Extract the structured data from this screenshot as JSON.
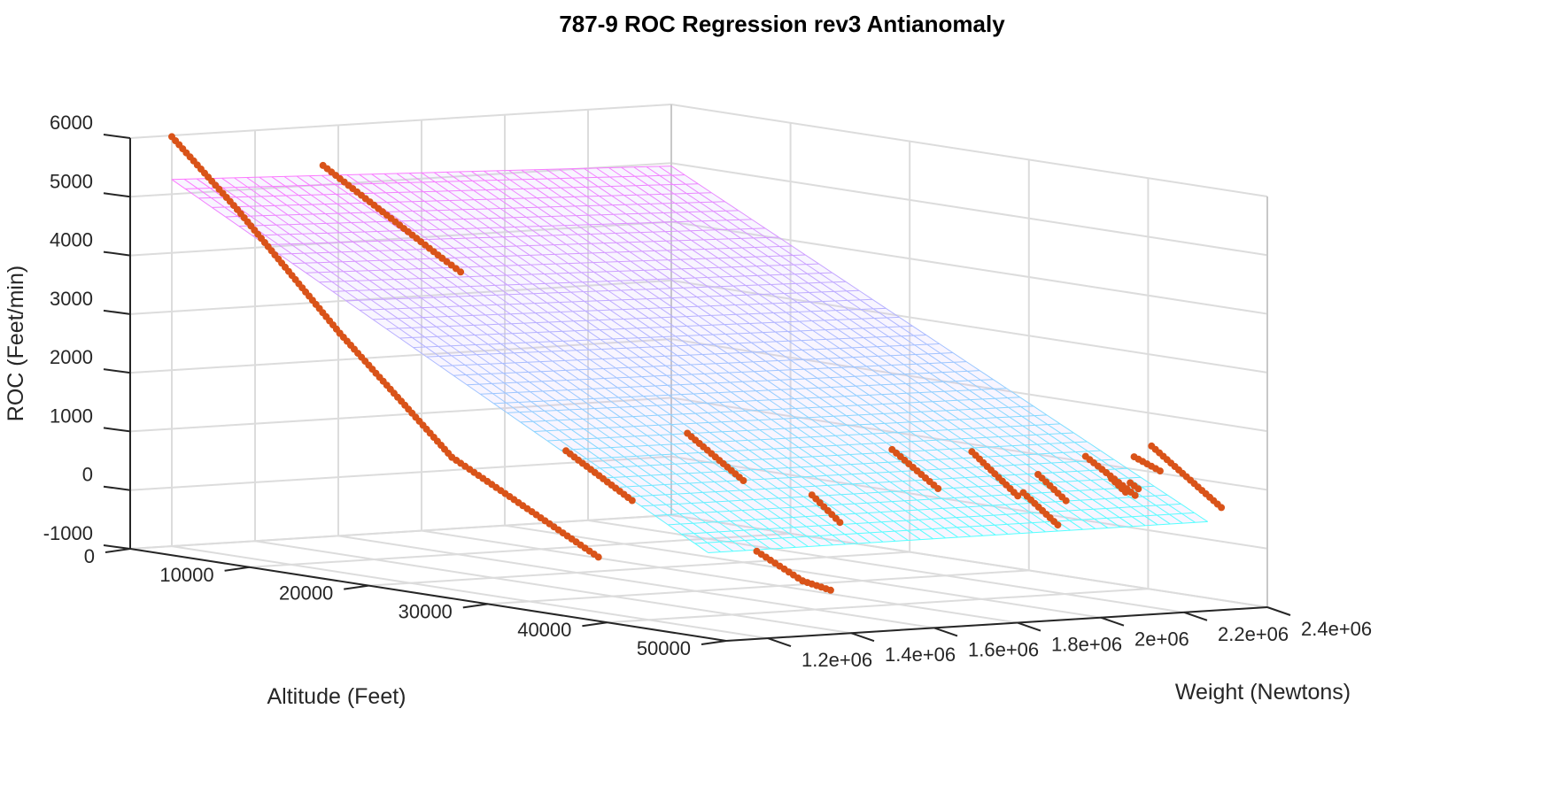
{
  "chart_data": {
    "type": "scatter",
    "subtype": "3d-surface-with-scatter",
    "title": "787-9 ROC Regression rev3 Antianomaly",
    "xlabel": "Altitude (Feet)",
    "ylabel": "Weight (Newtons)",
    "zlabel": "ROC (Feet/min)",
    "xlim": [
      0,
      50000
    ],
    "ylim": [
      1100000,
      2400000
    ],
    "zlim": [
      -1000,
      6000
    ],
    "x_ticks": [
      "0",
      "10000",
      "20000",
      "30000",
      "40000",
      "50000"
    ],
    "y_ticks": [
      "1.2e+06",
      "1.4e+06",
      "1.6e+06",
      "1.8e+06",
      "2e+06",
      "2.2e+06",
      "2.4e+06"
    ],
    "z_ticks": [
      "-1000",
      "0",
      "1000",
      "2000",
      "3000",
      "4000",
      "5000",
      "6000"
    ],
    "grid": true,
    "surface": {
      "name": "regression plane",
      "colormap": [
        "#ff77ff",
        "#55ffff"
      ],
      "x_range": [
        0,
        45000
      ],
      "y_range": [
        1200000,
        2400000
      ],
      "corners": {
        "x0_ylo": 5250,
        "x0_yhi": 4950,
        "x45000_ylo": 300,
        "x45000_yhi": 300
      }
    },
    "scatter": {
      "name": "flight data",
      "color": "#d95319",
      "segments": [
        {
          "x": [
            0,
            4800
          ],
          "y": [
            1200000,
            1220000
          ],
          "z": [
            5980,
            4880
          ]
        },
        {
          "x": [
            4800,
            12000
          ],
          "y": [
            1220000,
            1260000
          ],
          "z": [
            4880,
            2980
          ]
        },
        {
          "x": [
            12000,
            20000
          ],
          "y": [
            1260000,
            1300000
          ],
          "z": [
            2980,
            1100
          ]
        },
        {
          "x": [
            20000,
            29500
          ],
          "y": [
            1300000,
            1380000
          ],
          "z": [
            1100,
            -340
          ]
        },
        {
          "x": [
            5000,
            14300
          ],
          "y": [
            1420000,
            1440000
          ],
          "z": [
            5550,
            4250
          ]
        },
        {
          "x": [
            14300,
            15500
          ],
          "y": [
            1440000,
            1450000
          ],
          "z": [
            4250,
            4050
          ]
        },
        {
          "x": [
            20500,
            25000
          ],
          "y": [
            1560000,
            1590000
          ],
          "z": [
            1110,
            390
          ]
        },
        {
          "x": [
            36500,
            40000
          ],
          "y": [
            1560000,
            1570000
          ],
          "z": [
            -100,
            -500
          ]
        },
        {
          "x": [
            40000,
            42000
          ],
          "y": [
            1570000,
            1580000
          ],
          "z": [
            -500,
            -600
          ]
        },
        {
          "x": [
            23000,
            27000
          ],
          "y": [
            1780000,
            1800000
          ],
          "z": [
            1390,
            700
          ]
        },
        {
          "x": [
            31000,
            33000
          ],
          "y": [
            1850000,
            1860000
          ],
          "z": [
            560,
            150
          ]
        },
        {
          "x": [
            29000,
            32500
          ],
          "y": [
            2100000,
            2110000
          ],
          "z": [
            1160,
            600
          ]
        },
        {
          "x": [
            40000,
            42200
          ],
          "y": [
            2100000,
            2120000
          ],
          "z": [
            770,
            280
          ]
        },
        {
          "x": [
            31500,
            35000
          ],
          "y": [
            2220000,
            2230000
          ],
          "z": [
            1150,
            500
          ]
        },
        {
          "x": [
            36000,
            38000
          ],
          "y": [
            2250000,
            2260000
          ],
          "z": [
            890,
            500
          ]
        },
        {
          "x": [
            37200,
            41000
          ],
          "y": [
            2330000,
            2340000
          ],
          "z": [
            1200,
            650
          ]
        },
        {
          "x": [
            38500,
            39500
          ],
          "y": [
            2355000,
            2360000
          ],
          "z": [
            850,
            650
          ]
        },
        {
          "x": [
            39000,
            41000
          ],
          "y": [
            2395000,
            2400000
          ],
          "z": [
            1220,
            1040
          ]
        },
        {
          "x": [
            39200,
            39700
          ],
          "y": [
            2380000,
            2385000
          ],
          "z": [
            790,
            700
          ]
        },
        {
          "x": [
            37500,
            43000
          ],
          "y": [
            2480000,
            2490000
          ],
          "z": [
            1320,
            440
          ]
        }
      ]
    }
  }
}
